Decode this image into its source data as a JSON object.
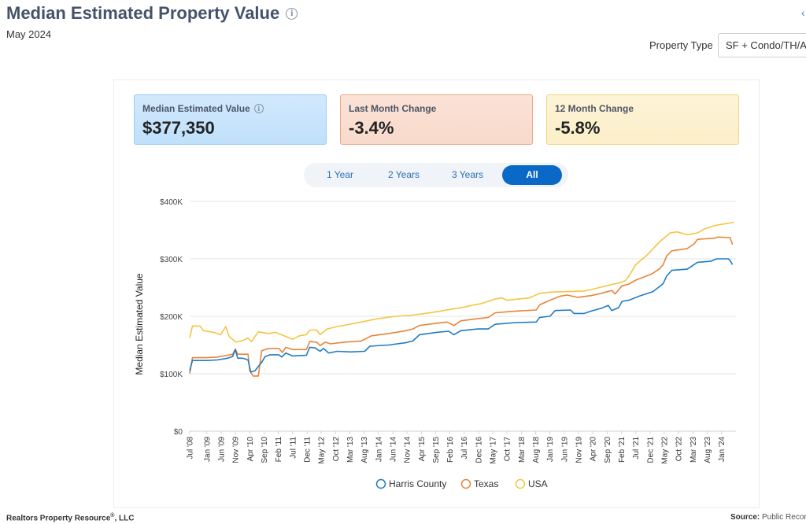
{
  "header": {
    "title": "Median Estimated Property Value",
    "subtitle": "May 2024",
    "property_type_label": "Property Type",
    "property_type_value": "SF + Condo/TH/Apt"
  },
  "cards": {
    "median": {
      "label": "Median Estimated Value",
      "value": "$377,350"
    },
    "month": {
      "label": "Last Month Change",
      "value": "-3.4%"
    },
    "year": {
      "label": "12 Month Change",
      "value": "-5.8%"
    }
  },
  "range_buttons": [
    "1 Year",
    "2 Years",
    "3 Years",
    "All"
  ],
  "range_selected": "All",
  "footer": {
    "left": "Realtors Property Resource",
    "left_mark": "®",
    "left_suffix": ", LLC",
    "right_label": "Source:",
    "right_text": "Public Records"
  },
  "chart_data": {
    "type": "line",
    "title": "",
    "xlabel": "",
    "ylabel": "Median Estimated Value",
    "ylim": [
      0,
      400000
    ],
    "yticks": [
      0,
      100000,
      200000,
      300000,
      400000
    ],
    "ytick_labels": [
      "$0",
      "$100K",
      "$200K",
      "$300K",
      "$400K"
    ],
    "xlim": [
      2008.5,
      2024.42
    ],
    "xticks": [
      2008.5,
      2009.0,
      2009.42,
      2009.83,
      2010.25,
      2010.67,
      2011.08,
      2011.5,
      2011.92,
      2012.33,
      2012.75,
      2013.17,
      2013.58,
      2014.0,
      2014.42,
      2014.83,
      2015.25,
      2015.67,
      2016.08,
      2016.5,
      2016.92,
      2017.33,
      2017.75,
      2018.17,
      2018.58,
      2019.0,
      2019.42,
      2019.83,
      2020.25,
      2020.67,
      2021.08,
      2021.5,
      2021.92,
      2022.33,
      2022.75,
      2023.17,
      2023.58,
      2024.0
    ],
    "xtick_labels": [
      "Jul '08",
      "Jan '09",
      "Jun '09",
      "Nov '09",
      "Apr '10",
      "Sep '10",
      "Feb '11",
      "Jul '11",
      "Dec '11",
      "May '12",
      "Oct '12",
      "Mar '13",
      "Aug '13",
      "Jan '14",
      "Jun '14",
      "Nov '14",
      "Apr '15",
      "Sep '15",
      "Feb '16",
      "Jul '16",
      "Dec '16",
      "May '17",
      "Oct '17",
      "Mar '18",
      "Aug '18",
      "Jan '19",
      "Jun '19",
      "Nov '19",
      "Apr '20",
      "Sep '20",
      "Feb '21",
      "Jul '21",
      "Dec '21",
      "May '22",
      "Oct '22",
      "Mar '23",
      "Aug '23",
      "Jan '24"
    ],
    "legend_position": "bottom-center",
    "series": [
      {
        "name": "Harris County",
        "color": "#1f7bc4",
        "points": [
          [
            2008.5,
            105000
          ],
          [
            2008.58,
            123000
          ],
          [
            2009.0,
            123000
          ],
          [
            2009.3,
            124000
          ],
          [
            2009.6,
            127000
          ],
          [
            2009.75,
            130000
          ],
          [
            2009.83,
            142000
          ],
          [
            2009.9,
            127000
          ],
          [
            2010.05,
            127000
          ],
          [
            2010.2,
            124000
          ],
          [
            2010.28,
            103000
          ],
          [
            2010.4,
            105000
          ],
          [
            2010.6,
            120000
          ],
          [
            2010.7,
            130000
          ],
          [
            2010.85,
            133000
          ],
          [
            2011.1,
            133000
          ],
          [
            2011.18,
            129000
          ],
          [
            2011.3,
            136000
          ],
          [
            2011.5,
            131000
          ],
          [
            2011.9,
            132000
          ],
          [
            2012.0,
            146000
          ],
          [
            2012.15,
            145000
          ],
          [
            2012.3,
            139000
          ],
          [
            2012.4,
            144000
          ],
          [
            2012.55,
            136000
          ],
          [
            2012.8,
            139000
          ],
          [
            2013.2,
            138000
          ],
          [
            2013.6,
            139000
          ],
          [
            2013.75,
            148000
          ],
          [
            2014.3,
            150000
          ],
          [
            2014.8,
            154000
          ],
          [
            2015.0,
            157000
          ],
          [
            2015.2,
            168000
          ],
          [
            2015.7,
            172000
          ],
          [
            2016.05,
            174000
          ],
          [
            2016.2,
            168000
          ],
          [
            2016.4,
            175000
          ],
          [
            2016.9,
            178000
          ],
          [
            2017.2,
            178000
          ],
          [
            2017.4,
            186000
          ],
          [
            2018.0,
            189000
          ],
          [
            2018.6,
            190000
          ],
          [
            2018.7,
            198000
          ],
          [
            2019.0,
            200000
          ],
          [
            2019.15,
            210000
          ],
          [
            2019.6,
            211000
          ],
          [
            2019.7,
            205000
          ],
          [
            2020.0,
            205000
          ],
          [
            2020.2,
            209000
          ],
          [
            2020.5,
            214000
          ],
          [
            2020.7,
            219000
          ],
          [
            2020.8,
            210000
          ],
          [
            2021.0,
            215000
          ],
          [
            2021.1,
            226000
          ],
          [
            2021.3,
            228000
          ],
          [
            2021.6,
            235000
          ],
          [
            2021.9,
            241000
          ],
          [
            2022.0,
            243000
          ],
          [
            2022.2,
            252000
          ],
          [
            2022.3,
            257000
          ],
          [
            2022.4,
            270000
          ],
          [
            2022.55,
            280000
          ],
          [
            2023.0,
            282000
          ],
          [
            2023.2,
            290000
          ],
          [
            2023.3,
            294000
          ],
          [
            2023.7,
            296000
          ],
          [
            2023.85,
            300000
          ],
          [
            2024.2,
            300000
          ],
          [
            2024.25,
            297000
          ],
          [
            2024.32,
            290000
          ]
        ]
      },
      {
        "name": "Texas",
        "color": "#e8843a",
        "points": [
          [
            2008.5,
            100000
          ],
          [
            2008.58,
            128000
          ],
          [
            2009.0,
            128000
          ],
          [
            2009.3,
            129000
          ],
          [
            2009.6,
            132000
          ],
          [
            2009.75,
            134000
          ],
          [
            2009.83,
            143000
          ],
          [
            2009.9,
            134000
          ],
          [
            2010.2,
            134000
          ],
          [
            2010.25,
            105000
          ],
          [
            2010.35,
            96000
          ],
          [
            2010.5,
            96000
          ],
          [
            2010.6,
            140000
          ],
          [
            2010.8,
            144000
          ],
          [
            2011.1,
            144000
          ],
          [
            2011.2,
            137000
          ],
          [
            2011.3,
            146000
          ],
          [
            2011.5,
            142000
          ],
          [
            2011.9,
            142000
          ],
          [
            2012.0,
            156000
          ],
          [
            2012.2,
            155000
          ],
          [
            2012.3,
            149000
          ],
          [
            2012.45,
            155000
          ],
          [
            2012.6,
            152000
          ],
          [
            2013.0,
            155000
          ],
          [
            2013.5,
            157000
          ],
          [
            2013.8,
            166000
          ],
          [
            2014.3,
            170000
          ],
          [
            2014.8,
            175000
          ],
          [
            2015.0,
            178000
          ],
          [
            2015.2,
            184000
          ],
          [
            2015.7,
            188000
          ],
          [
            2016.0,
            190000
          ],
          [
            2016.2,
            184000
          ],
          [
            2016.4,
            192000
          ],
          [
            2016.9,
            196000
          ],
          [
            2017.2,
            198000
          ],
          [
            2017.4,
            206000
          ],
          [
            2018.0,
            209000
          ],
          [
            2018.6,
            211000
          ],
          [
            2018.7,
            220000
          ],
          [
            2019.0,
            228000
          ],
          [
            2019.3,
            235000
          ],
          [
            2019.5,
            237000
          ],
          [
            2019.8,
            233000
          ],
          [
            2020.2,
            236000
          ],
          [
            2020.5,
            240000
          ],
          [
            2020.8,
            245000
          ],
          [
            2020.9,
            239000
          ],
          [
            2021.1,
            253000
          ],
          [
            2021.3,
            256000
          ],
          [
            2021.5,
            263000
          ],
          [
            2021.9,
            272000
          ],
          [
            2022.0,
            275000
          ],
          [
            2022.2,
            283000
          ],
          [
            2022.3,
            290000
          ],
          [
            2022.4,
            305000
          ],
          [
            2022.55,
            314000
          ],
          [
            2023.0,
            318000
          ],
          [
            2023.2,
            326000
          ],
          [
            2023.3,
            334000
          ],
          [
            2023.8,
            336000
          ],
          [
            2023.9,
            338000
          ],
          [
            2024.25,
            337000
          ],
          [
            2024.32,
            325000
          ]
        ]
      },
      {
        "name": "USA",
        "color": "#f6c443",
        "points": [
          [
            2008.5,
            162000
          ],
          [
            2008.58,
            183000
          ],
          [
            2008.8,
            183000
          ],
          [
            2008.9,
            175000
          ],
          [
            2009.2,
            172000
          ],
          [
            2009.4,
            168000
          ],
          [
            2009.55,
            182000
          ],
          [
            2009.65,
            165000
          ],
          [
            2009.85,
            155000
          ],
          [
            2010.05,
            158000
          ],
          [
            2010.2,
            162000
          ],
          [
            2010.3,
            156000
          ],
          [
            2010.5,
            173000
          ],
          [
            2010.8,
            170000
          ],
          [
            2011.0,
            172000
          ],
          [
            2011.3,
            165000
          ],
          [
            2011.5,
            160000
          ],
          [
            2011.7,
            166000
          ],
          [
            2011.9,
            168000
          ],
          [
            2012.0,
            176000
          ],
          [
            2012.2,
            176000
          ],
          [
            2012.3,
            168000
          ],
          [
            2012.5,
            178000
          ],
          [
            2012.8,
            182000
          ],
          [
            2013.5,
            190000
          ],
          [
            2014.0,
            196000
          ],
          [
            2014.5,
            200000
          ],
          [
            2015.0,
            202000
          ],
          [
            2015.5,
            206000
          ],
          [
            2015.9,
            210000
          ],
          [
            2016.1,
            212000
          ],
          [
            2016.5,
            216000
          ],
          [
            2016.8,
            220000
          ],
          [
            2017.0,
            222000
          ],
          [
            2017.4,
            230000
          ],
          [
            2017.6,
            232000
          ],
          [
            2017.75,
            228000
          ],
          [
            2018.4,
            232000
          ],
          [
            2018.7,
            240000
          ],
          [
            2019.0,
            242000
          ],
          [
            2019.5,
            243000
          ],
          [
            2020.0,
            244000
          ],
          [
            2020.3,
            248000
          ],
          [
            2020.7,
            254000
          ],
          [
            2021.0,
            258000
          ],
          [
            2021.2,
            262000
          ],
          [
            2021.3,
            270000
          ],
          [
            2021.5,
            290000
          ],
          [
            2021.8,
            305000
          ],
          [
            2022.2,
            330000
          ],
          [
            2022.5,
            345000
          ],
          [
            2022.7,
            347000
          ],
          [
            2023.0,
            342000
          ],
          [
            2023.3,
            345000
          ],
          [
            2023.5,
            352000
          ],
          [
            2023.8,
            358000
          ],
          [
            2024.0,
            360000
          ],
          [
            2024.3,
            363000
          ],
          [
            2024.36,
            364000
          ]
        ]
      }
    ]
  }
}
